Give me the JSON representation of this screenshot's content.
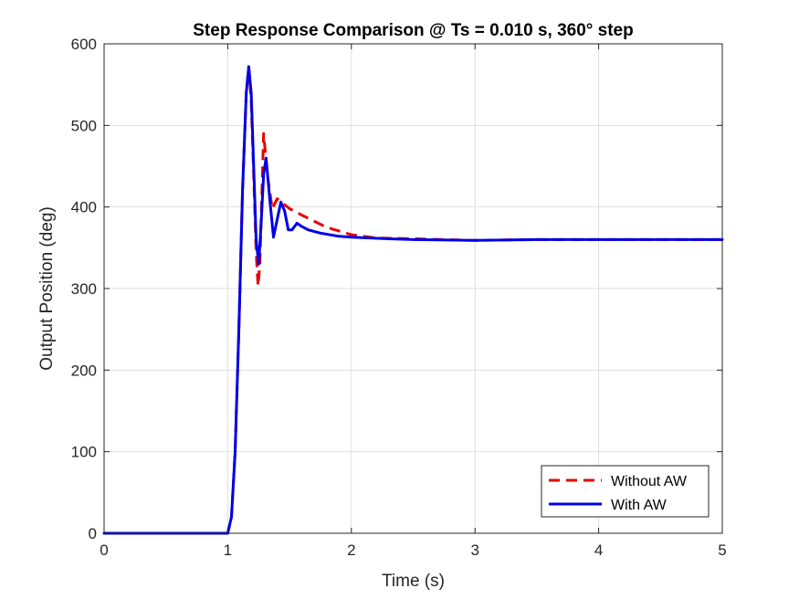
{
  "chart_data": {
    "type": "line",
    "title": "Step Response Comparison @ Ts = 0.010 s, 360° step",
    "xlabel": "Time (s)",
    "ylabel": "Output Position (deg)",
    "xlim": [
      0,
      5
    ],
    "ylim": [
      0,
      600
    ],
    "xticks": [
      0,
      1,
      2,
      3,
      4,
      5
    ],
    "xtick_labels": [
      "0",
      "1",
      "2",
      "3",
      "4",
      "5"
    ],
    "yticks": [
      0,
      100,
      200,
      300,
      400,
      500,
      600
    ],
    "ytick_labels": [
      "0",
      "100",
      "200",
      "300",
      "400",
      "500",
      "600"
    ],
    "grid": true,
    "legend_position": "bottom-right",
    "series": [
      {
        "name": "Without AW",
        "color": "#e60000",
        "style": "dashed",
        "x": [
          0,
          0.5,
          1.0,
          1.03,
          1.06,
          1.09,
          1.12,
          1.15,
          1.17,
          1.19,
          1.21,
          1.23,
          1.245,
          1.26,
          1.29,
          1.32,
          1.36,
          1.4,
          1.5,
          1.6,
          1.8,
          2.0,
          2.2,
          2.5,
          3.0,
          3.5,
          4.0,
          4.5,
          5.0
        ],
        "y": [
          0,
          0,
          0,
          20,
          100,
          250,
          420,
          540,
          572,
          530,
          440,
          345,
          303,
          330,
          490,
          440,
          398,
          410,
          398,
          390,
          375,
          366,
          362,
          361,
          359,
          360,
          360,
          360,
          360
        ]
      },
      {
        "name": "With AW",
        "color": "#0000e6",
        "style": "solid",
        "x": [
          0,
          0.5,
          1.0,
          1.03,
          1.06,
          1.09,
          1.12,
          1.15,
          1.17,
          1.19,
          1.21,
          1.23,
          1.25,
          1.27,
          1.29,
          1.31,
          1.34,
          1.37,
          1.4,
          1.43,
          1.46,
          1.49,
          1.52,
          1.56,
          1.6,
          1.65,
          1.75,
          1.9,
          2.0,
          2.3,
          2.5,
          3.0,
          3.5,
          4.0,
          4.5,
          5.0
        ],
        "y": [
          0,
          0,
          0,
          20,
          100,
          250,
          420,
          540,
          572,
          540,
          450,
          360,
          330,
          380,
          440,
          460,
          410,
          363,
          385,
          406,
          395,
          372,
          372,
          380,
          376,
          372,
          368,
          364,
          363,
          361,
          360,
          359,
          360,
          360,
          360,
          360
        ]
      }
    ]
  }
}
